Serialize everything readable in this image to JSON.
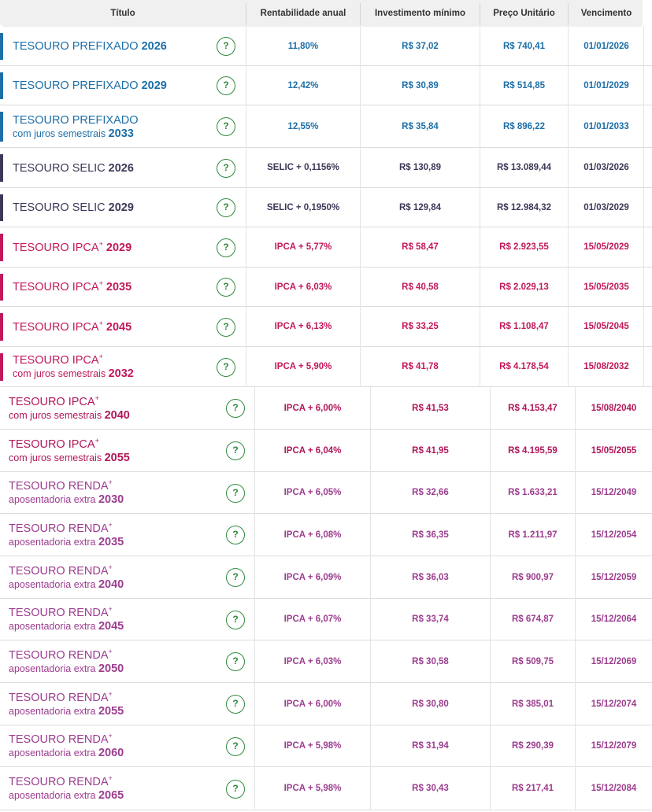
{
  "header": {
    "titulo": "Título",
    "rentabilidade": "Rentabilidade anual",
    "investimento": "Investimento mínimo",
    "preco": "Preço Unitário",
    "vencimento": "Vencimento"
  },
  "help_glyph": "?",
  "colors": {
    "prefixado": "#1c6fa8",
    "selic": "#3e3858",
    "ipca": "#c2185b",
    "renda": "#9c3d8f"
  },
  "rows": [
    {
      "name": "TESOURO PREFIXADO",
      "plus": false,
      "sub": "",
      "year": "2026",
      "rent": "11,80%",
      "inv": "R$ 37,02",
      "preco": "R$ 740,41",
      "venc": "01/01/2026",
      "theme": "blue"
    },
    {
      "name": "TESOURO PREFIXADO",
      "plus": false,
      "sub": "",
      "year": "2029",
      "rent": "12,42%",
      "inv": "R$ 30,89",
      "preco": "R$ 514,85",
      "venc": "01/01/2029",
      "theme": "blue"
    },
    {
      "name": "TESOURO PREFIXADO",
      "plus": false,
      "sub": "com juros semestrais",
      "year": "2033",
      "rent": "12,55%",
      "inv": "R$ 35,84",
      "preco": "R$ 896,22",
      "venc": "01/01/2033",
      "theme": "blue"
    },
    {
      "name": "TESOURO SELIC",
      "plus": false,
      "sub": "",
      "year": "2026",
      "rent": "SELIC + 0,1156%",
      "inv": "R$ 130,89",
      "preco": "R$ 13.089,44",
      "venc": "01/03/2026",
      "theme": "navy"
    },
    {
      "name": "TESOURO SELIC",
      "plus": false,
      "sub": "",
      "year": "2029",
      "rent": "SELIC + 0,1950%",
      "inv": "R$ 129,84",
      "preco": "R$ 12.984,32",
      "venc": "01/03/2029",
      "theme": "navy"
    },
    {
      "name": "TESOURO IPCA",
      "plus": true,
      "sub": "",
      "year": "2029",
      "rent": "IPCA + 5,77%",
      "inv": "R$ 58,47",
      "preco": "R$ 2.923,55",
      "venc": "15/05/2029",
      "theme": "pink"
    },
    {
      "name": "TESOURO IPCA",
      "plus": true,
      "sub": "",
      "year": "2035",
      "rent": "IPCA + 6,03%",
      "inv": "R$ 40,58",
      "preco": "R$ 2.029,13",
      "venc": "15/05/2035",
      "theme": "pink"
    },
    {
      "name": "TESOURO IPCA",
      "plus": true,
      "sub": "",
      "year": "2045",
      "rent": "IPCA + 6,13%",
      "inv": "R$ 33,25",
      "preco": "R$ 1.108,47",
      "venc": "15/05/2045",
      "theme": "pink"
    },
    {
      "name": "TESOURO IPCA",
      "plus": true,
      "sub": "com juros semestrais",
      "year": "2032",
      "rent": "IPCA + 5,90%",
      "inv": "R$ 41,78",
      "preco": "R$ 4.178,54",
      "venc": "15/08/2032",
      "theme": "pink"
    },
    {
      "name": "TESOURO IPCA",
      "plus": true,
      "sub": "com juros semestrais",
      "year": "2040",
      "rent": "IPCA + 6,00%",
      "inv": "R$ 41,53",
      "preco": "R$ 4.153,47",
      "venc": "15/08/2040",
      "theme": "ipca2"
    },
    {
      "name": "TESOURO IPCA",
      "plus": true,
      "sub": "com juros semestrais",
      "year": "2055",
      "rent": "IPCA + 6,04%",
      "inv": "R$ 41,95",
      "preco": "R$ 4.195,59",
      "venc": "15/05/2055",
      "theme": "ipca2"
    },
    {
      "name": "TESOURO RENDA",
      "plus": true,
      "sub": "aposentadoria extra",
      "year": "2030",
      "rent": "IPCA + 6,05%",
      "inv": "R$ 32,66",
      "preco": "R$ 1.633,21",
      "venc": "15/12/2049",
      "theme": "purple"
    },
    {
      "name": "TESOURO RENDA",
      "plus": true,
      "sub": "aposentadoria extra",
      "year": "2035",
      "rent": "IPCA + 6,08%",
      "inv": "R$ 36,35",
      "preco": "R$ 1.211,97",
      "venc": "15/12/2054",
      "theme": "purple"
    },
    {
      "name": "TESOURO RENDA",
      "plus": true,
      "sub": "aposentadoria extra",
      "year": "2040",
      "rent": "IPCA + 6,09%",
      "inv": "R$ 36,03",
      "preco": "R$ 900,97",
      "venc": "15/12/2059",
      "theme": "purple"
    },
    {
      "name": "TESOURO RENDA",
      "plus": true,
      "sub": "aposentadoria extra",
      "year": "2045",
      "rent": "IPCA + 6,07%",
      "inv": "R$ 33,74",
      "preco": "R$ 674,87",
      "venc": "15/12/2064",
      "theme": "purple"
    },
    {
      "name": "TESOURO RENDA",
      "plus": true,
      "sub": "aposentadoria extra",
      "year": "2050",
      "rent": "IPCA + 6,03%",
      "inv": "R$ 30,58",
      "preco": "R$ 509,75",
      "venc": "15/12/2069",
      "theme": "purple"
    },
    {
      "name": "TESOURO RENDA",
      "plus": true,
      "sub": "aposentadoria extra",
      "year": "2055",
      "rent": "IPCA + 6,00%",
      "inv": "R$ 30,80",
      "preco": "R$ 385,01",
      "venc": "15/12/2074",
      "theme": "purple"
    },
    {
      "name": "TESOURO RENDA",
      "plus": true,
      "sub": "aposentadoria extra",
      "year": "2060",
      "rent": "IPCA + 5,98%",
      "inv": "R$ 31,94",
      "preco": "R$ 290,39",
      "venc": "15/12/2079",
      "theme": "purple"
    },
    {
      "name": "TESOURO RENDA",
      "plus": true,
      "sub": "aposentadoria extra",
      "year": "2065",
      "rent": "IPCA + 5,98%",
      "inv": "R$ 30,43",
      "preco": "R$ 217,41",
      "venc": "15/12/2084",
      "theme": "purple"
    }
  ]
}
